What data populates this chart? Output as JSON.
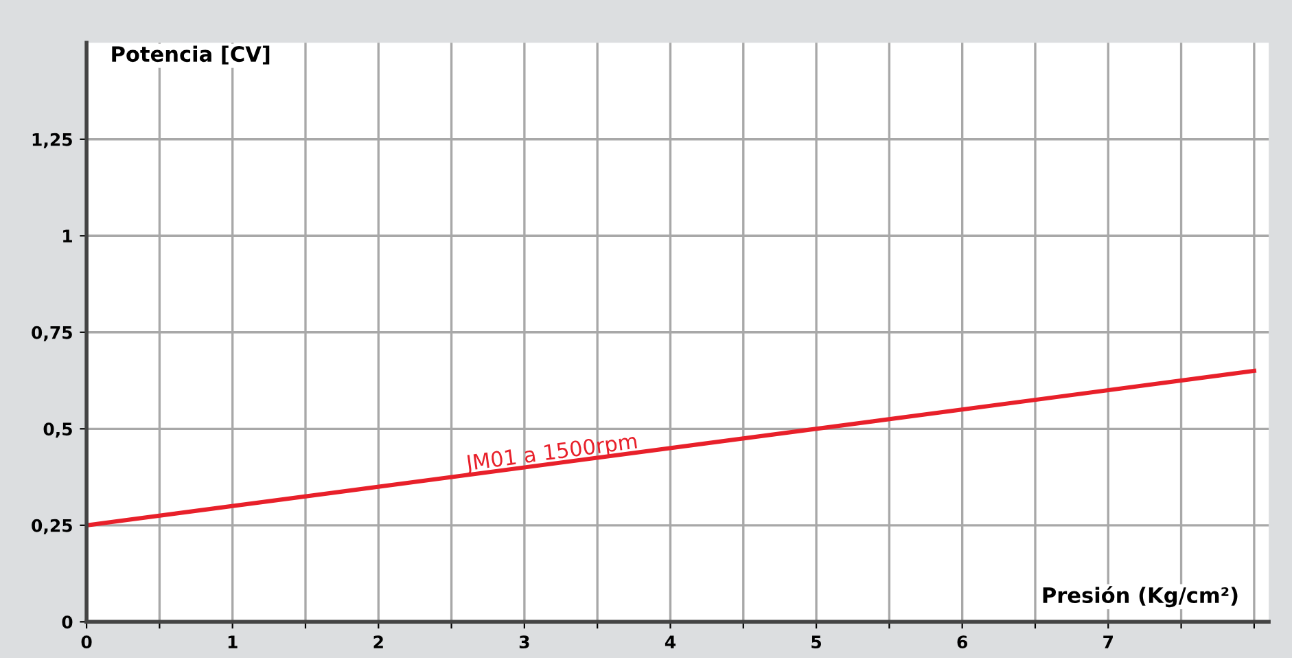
{
  "chart_data": {
    "type": "line",
    "xlabel": "Presión (Kg/cm²)",
    "ylabel": "Potencia [CV]",
    "x": [
      0,
      8
    ],
    "series": [
      {
        "name": "JM01 a 1500rpm",
        "color": "#e8202a",
        "values": [
          0.25,
          0.65
        ]
      }
    ],
    "xlim": [
      0,
      8.1
    ],
    "ylim": [
      0,
      1.5
    ],
    "xticks": [
      0,
      {
        "value": 0.5,
        "label": null
      },
      1,
      {
        "value": 1.5,
        "label": null
      },
      2,
      {
        "value": 2.5,
        "label": null
      },
      3,
      {
        "value": 3.5,
        "label": null
      },
      4,
      {
        "value": 4.5,
        "label": null
      },
      5,
      {
        "value": 5.5,
        "label": null
      },
      6,
      {
        "value": 6.5,
        "label": null
      },
      7,
      {
        "value": 7.5,
        "label": null
      },
      {
        "value": 8,
        "label": null
      }
    ],
    "yticks": [
      0,
      {
        "value": 0.25,
        "label": "0,25"
      },
      {
        "value": 0.5,
        "label": "0,5"
      },
      {
        "value": 0.75,
        "label": "0,75"
      },
      1,
      {
        "value": 1.25,
        "label": "1,25"
      }
    ],
    "grid": true,
    "legend": false,
    "marker": "none",
    "line_style": "solid"
  }
}
